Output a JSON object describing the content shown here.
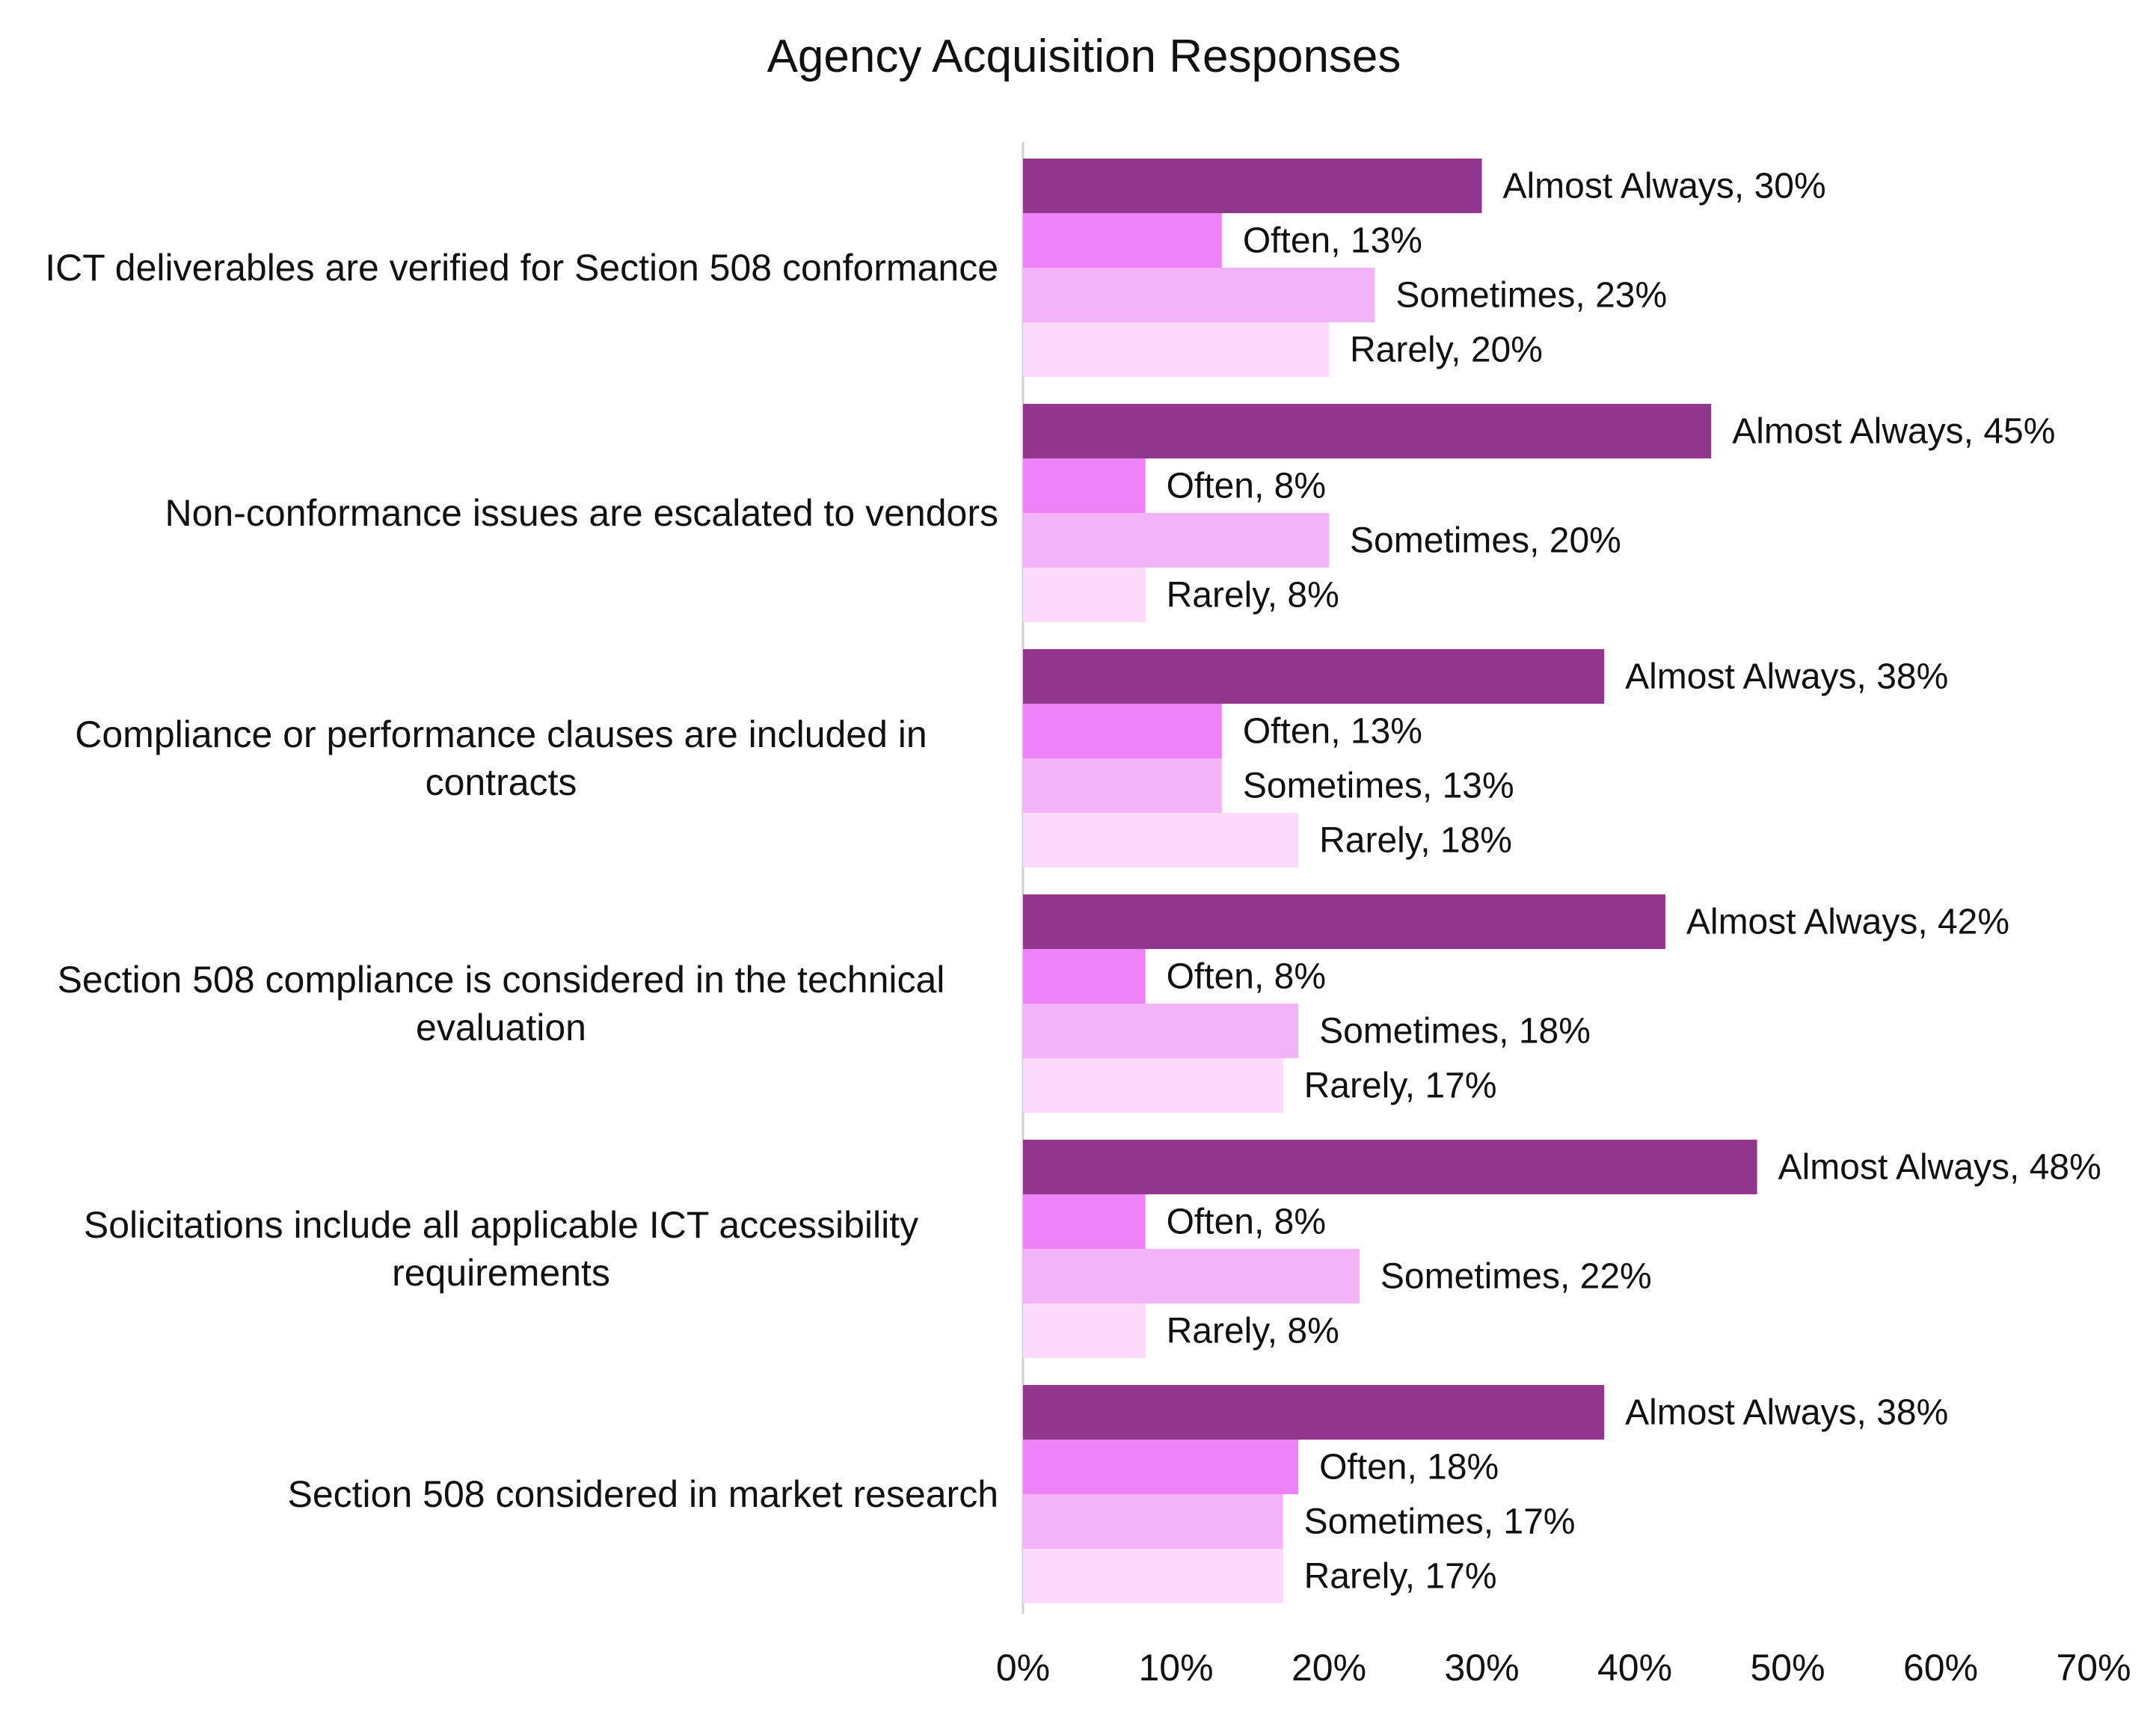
{
  "chart_data": {
    "type": "bar",
    "orientation": "horizontal",
    "title": "Agency Acquisition Responses",
    "xlabel": "",
    "ylabel": "",
    "xlim": [
      0,
      70
    ],
    "x_ticks": [
      "0%",
      "10%",
      "20%",
      "30%",
      "40%",
      "50%",
      "60%",
      "70%"
    ],
    "grid": false,
    "legend": "none (series names shown in data labels)",
    "categories": [
      "ICT deliverables are verified for Section 508 conformance",
      "Non-conformance issues are escalated to vendors",
      "Compliance or performance clauses are included in contracts",
      "Section 508 compliance is considered in the technical evaluation",
      "Solicitations include all applicable ICT accessibility requirements",
      "Section 508 considered in market research"
    ],
    "series": [
      {
        "name": "Almost Always",
        "color": "#92358c",
        "values": [
          30,
          45,
          38,
          42,
          48,
          38
        ]
      },
      {
        "name": "Often",
        "color": "#ee82f8",
        "values": [
          13,
          8,
          13,
          8,
          8,
          18
        ]
      },
      {
        "name": "Sometimes",
        "color": "#f3b3f9",
        "values": [
          23,
          20,
          13,
          18,
          22,
          17
        ]
      },
      {
        "name": "Rarely",
        "color": "#fbdafb",
        "values": [
          20,
          8,
          18,
          17,
          8,
          17
        ]
      }
    ]
  }
}
